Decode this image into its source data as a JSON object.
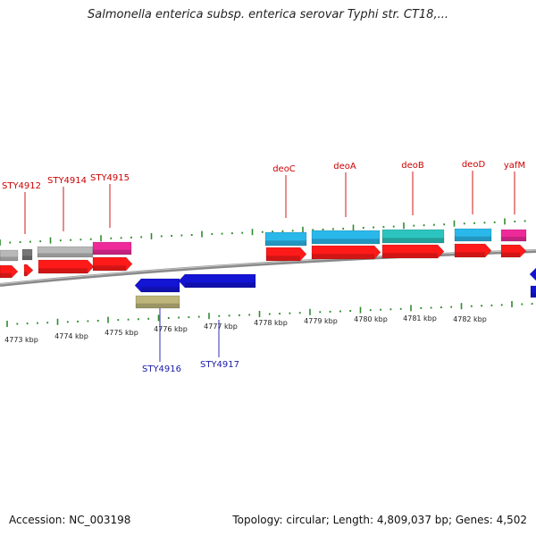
{
  "title": "Salmonella enterica subsp. enterica serovar Typhi str. CT18,...",
  "footer": {
    "accession": "Accession: NC_003198",
    "summary": "Topology: circular; Length: 4,809,037 bp; Genes: 4,502"
  },
  "colors": {
    "forward_label": "#cc0000",
    "reverse_label": "#1a1aaa",
    "tick": "#2e8b2e",
    "backbone": "#8a8a8a",
    "cds_red": "#ff1a1a",
    "cds_blue": "#1414d4",
    "cyan": "#2ab8ea",
    "teal": "#2cc4be",
    "magenta": "#ee2a9a",
    "gray": "#b8b8b8",
    "dark_gray": "#777777",
    "olive": "#bdb57a"
  },
  "scale_labels": [
    "4773 kbp",
    "4774 kbp",
    "4775 kbp",
    "4776 kbp",
    "4777 kbp",
    "4778 kbp",
    "4779 kbp",
    "4780 kbp",
    "4781 kbp",
    "4782 kbp"
  ],
  "forward_genes": [
    "STY4912",
    "STY4914",
    "STY4915",
    "deoC",
    "deoA",
    "deoB",
    "deoD",
    "yafM"
  ],
  "reverse_genes": [
    "STY4916",
    "STY4917"
  ]
}
